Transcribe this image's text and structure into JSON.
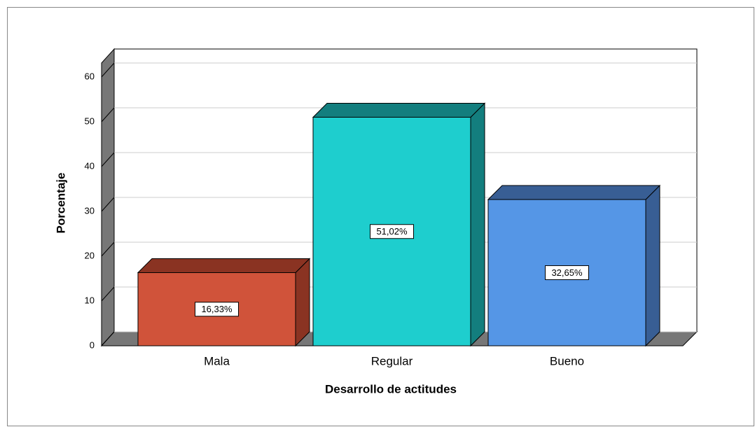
{
  "chart_data": {
    "type": "bar3d",
    "xlabel": "Desarrollo de actitudes",
    "ylabel": "Porcentaje",
    "categories": [
      "Mala",
      "Regular",
      "Bueno"
    ],
    "values": [
      16.33,
      51.02,
      32.65
    ],
    "value_labels": [
      "16,33%",
      "51,02%",
      "32,65%"
    ],
    "colors": [
      "#d0533a",
      "#1ecece",
      "#5596e6"
    ],
    "side_colors": [
      "#8a3322",
      "#137e7e",
      "#385e94"
    ],
    "ylim": [
      0,
      60
    ],
    "yticks": [
      0,
      10,
      20,
      30,
      40,
      50,
      60
    ],
    "grid": true
  }
}
